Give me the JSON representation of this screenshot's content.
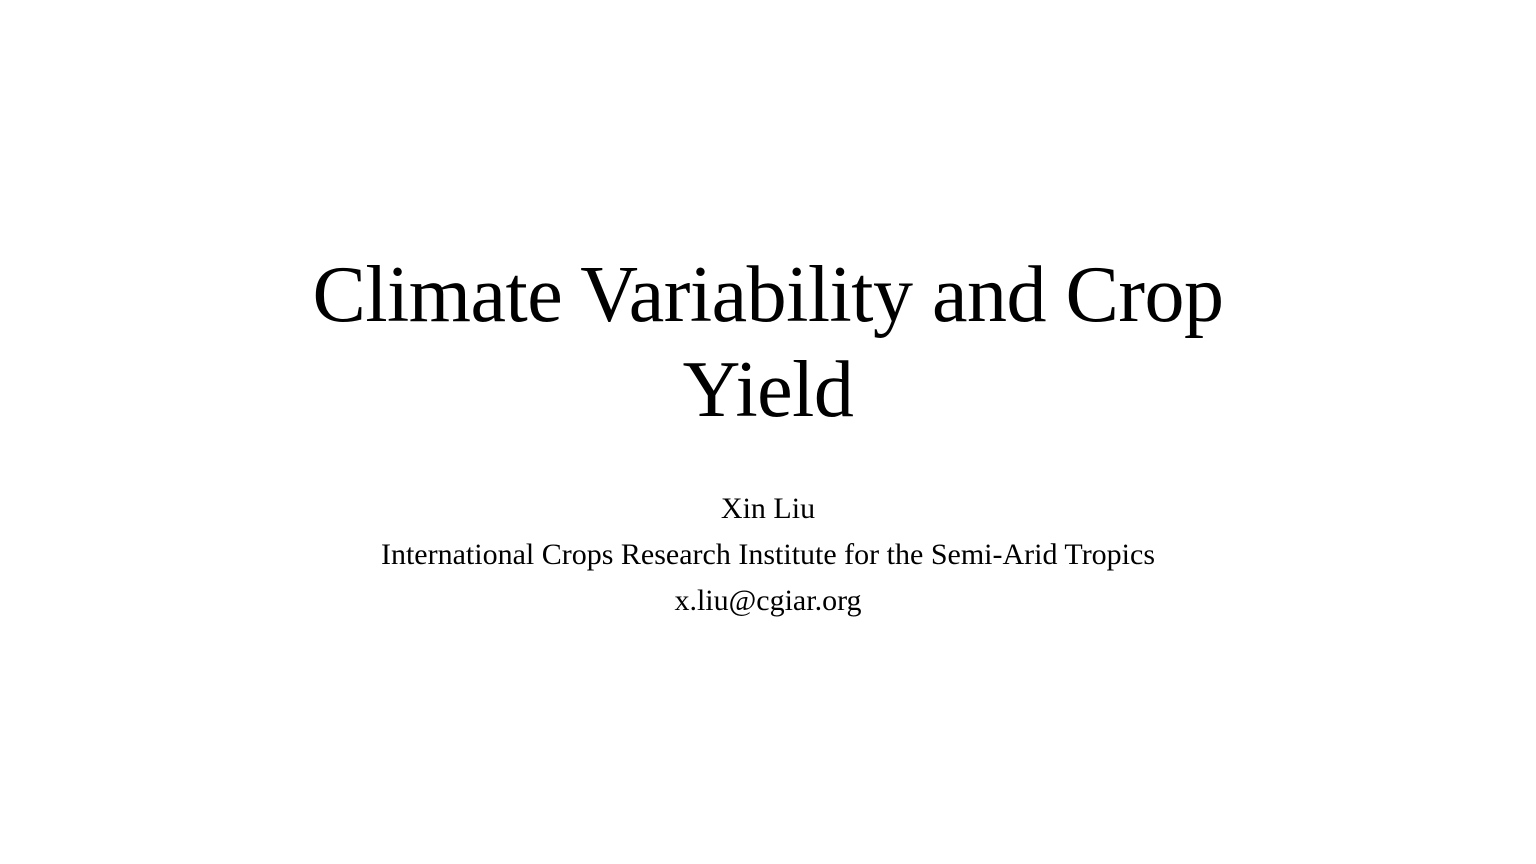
{
  "slide": {
    "title": "Climate Variability and Crop Yield",
    "author": "Xin Liu",
    "affiliation": "International Crops Research Institute for the Semi-Arid Tropics",
    "email": "x.liu@cgiar.org"
  }
}
